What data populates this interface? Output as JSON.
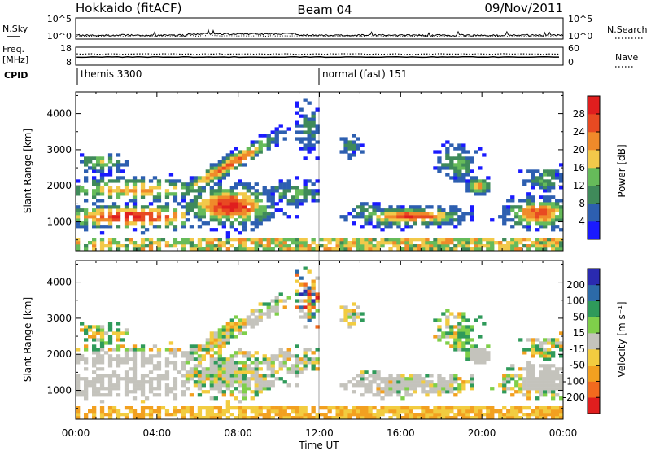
{
  "header": {
    "station": "Hokkaido (fitACF)",
    "beam": "Beam 04",
    "date": "09/Nov/2011"
  },
  "status_panels": {
    "nsky_label": "N.Sky",
    "nsearch_label": "N.Search",
    "nsky_ticks": [
      "10^5",
      "10^0"
    ],
    "nsearch_ticks": [
      "10^5",
      "10^0"
    ],
    "freq_label_1": "Freq.",
    "freq_label_2": "[MHz]",
    "freq_ticks": [
      "18",
      "8"
    ],
    "nave_label": "Nave",
    "nave_ticks": [
      "60",
      "0"
    ],
    "cpid_label": "CPID",
    "cpid_modes": [
      {
        "name": "themis 3300",
        "start_hour": 0
      },
      {
        "name": "normal (fast) 151",
        "start_hour": 12
      }
    ]
  },
  "chart_data": [
    {
      "type": "heatmap",
      "name": "power",
      "xlabel": "Time UT",
      "ylabel": "Slant Range [km]",
      "xlim": [
        0,
        24
      ],
      "ylim": [
        200,
        4600
      ],
      "x_ticks": [
        "00:00",
        "04:00",
        "08:00",
        "12:00",
        "16:00",
        "20:00",
        "00:00"
      ],
      "y_ticks": [
        "1000",
        "2000",
        "3000",
        "4000"
      ],
      "colorbar": {
        "label": "Power [dB]",
        "ticks": [
          "4",
          "8",
          "12",
          "16",
          "20",
          "24",
          "28"
        ],
        "range": [
          0,
          30
        ],
        "colors": [
          "#1a1aff",
          "#2d5fb0",
          "#3f8a5a",
          "#66bb5a",
          "#f2c94a",
          "#f08a2a",
          "#e84a22",
          "#e01e1e"
        ]
      }
    },
    {
      "type": "heatmap",
      "name": "velocity",
      "xlabel": "Time UT",
      "ylabel": "Slant Range [km]",
      "xlim": [
        0,
        24
      ],
      "ylim": [
        200,
        4600
      ],
      "x_ticks": [
        "00:00",
        "04:00",
        "08:00",
        "12:00",
        "16:00",
        "20:00",
        "00:00"
      ],
      "y_ticks": [
        "1000",
        "2000",
        "3000",
        "4000"
      ],
      "colorbar": {
        "label": "Velocity [m s⁻¹]",
        "ticks": [
          "-200",
          "-100",
          "-50",
          "-15",
          "15",
          "50",
          "100",
          "200"
        ],
        "range": [
          -250,
          250
        ],
        "ground_scatter_color": "#c4c3bc",
        "colors": [
          "#e01e1e",
          "#f26a1e",
          "#f2a020",
          "#f2cc40",
          "#c4c3bc",
          "#7fcf4a",
          "#2f9a5a",
          "#2c6aa8",
          "#2a2ab0"
        ]
      }
    }
  ]
}
